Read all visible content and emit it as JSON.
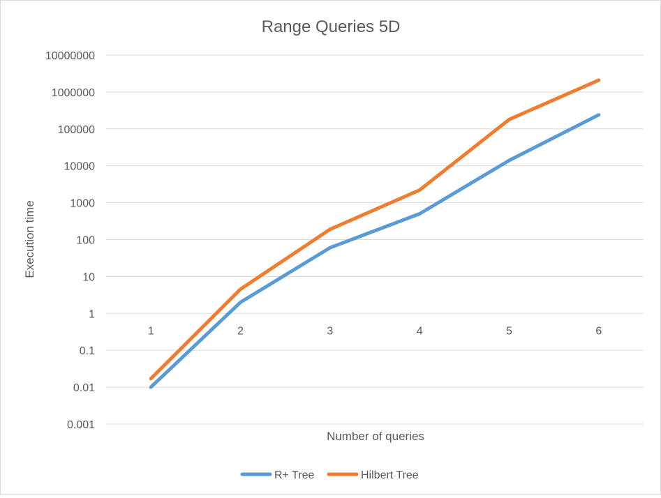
{
  "chart_data": {
    "type": "line",
    "title": "Range Queries 5D",
    "xlabel": "Number of queries",
    "ylabel": "Execution time",
    "categories": [
      "1",
      "2",
      "3",
      "4",
      "5",
      "6"
    ],
    "y_scale": "log",
    "ylim": [
      0.001,
      10000000
    ],
    "y_ticks": [
      0.001,
      0.01,
      0.1,
      1,
      10,
      100,
      1000,
      10000,
      100000,
      1000000,
      10000000
    ],
    "y_tick_labels": [
      "0.001",
      "0.01",
      "0.1",
      "1",
      "10",
      "100",
      "1000",
      "10000",
      "100000",
      "1000000",
      "10000000"
    ],
    "grid": true,
    "legend_position": "bottom",
    "series": [
      {
        "name": "R+ Tree",
        "color": "#5b9bd5",
        "values": [
          0.01,
          2,
          60,
          500,
          14000,
          240000
        ]
      },
      {
        "name": "Hilbert Tree",
        "color": "#ed7d31",
        "values": [
          0.017,
          4.5,
          190,
          2200,
          180000,
          2100000
        ]
      }
    ]
  }
}
